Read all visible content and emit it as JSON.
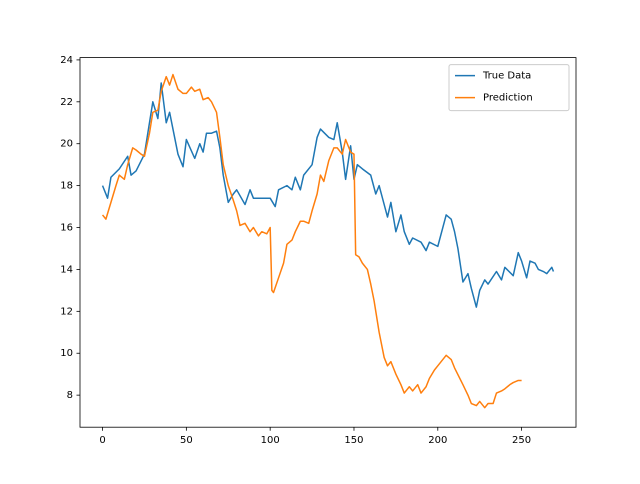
{
  "chart_data": {
    "type": "line",
    "xlim": [
      -13.45,
      282.45
    ],
    "ylim": [
      6.47,
      24.11
    ],
    "xticks": [
      0,
      50,
      100,
      150,
      200,
      250
    ],
    "yticks": [
      8,
      10,
      12,
      14,
      16,
      18,
      20,
      22,
      24
    ],
    "legend": "upper right",
    "series": [
      {
        "name": "True Data",
        "color": "#1f77b4",
        "x": [
          0,
          3,
          5,
          10,
          15,
          17,
          20,
          25,
          30,
          33,
          35,
          38,
          40,
          45,
          48,
          50,
          55,
          58,
          60,
          62,
          65,
          68,
          70,
          72,
          75,
          78,
          80,
          85,
          88,
          90,
          95,
          100,
          103,
          105,
          110,
          113,
          115,
          118,
          120,
          125,
          128,
          130,
          135,
          138,
          140,
          143,
          145,
          148,
          150,
          152,
          155,
          160,
          163,
          165,
          170,
          172,
          175,
          178,
          180,
          183,
          185,
          190,
          193,
          195,
          200,
          203,
          205,
          208,
          210,
          212,
          215,
          218,
          220,
          223,
          225,
          228,
          230,
          235,
          238,
          240,
          245,
          248,
          250,
          253,
          255,
          258,
          260,
          263,
          265,
          268,
          269
        ],
        "values": [
          18.0,
          17.4,
          18.4,
          18.8,
          19.4,
          18.5,
          18.7,
          19.5,
          22.0,
          21.2,
          22.9,
          21.0,
          21.5,
          19.5,
          18.9,
          20.2,
          19.3,
          20.0,
          19.6,
          20.5,
          20.5,
          20.6,
          19.8,
          18.5,
          17.2,
          17.6,
          17.8,
          17.1,
          17.8,
          17.4,
          17.4,
          17.4,
          17.0,
          17.8,
          18.0,
          17.8,
          18.4,
          17.8,
          18.5,
          19.0,
          20.3,
          20.7,
          20.3,
          20.2,
          21.0,
          19.6,
          18.3,
          19.9,
          18.3,
          19.0,
          18.8,
          18.5,
          17.6,
          18.0,
          16.5,
          17.2,
          15.8,
          16.6,
          15.8,
          15.2,
          15.5,
          15.3,
          14.9,
          15.3,
          15.1,
          16.0,
          16.6,
          16.4,
          15.8,
          15.0,
          13.4,
          13.8,
          13.1,
          12.2,
          13.0,
          13.5,
          13.3,
          13.9,
          13.5,
          14.1,
          13.7,
          14.8,
          14.4,
          13.6,
          14.4,
          14.3,
          14.0,
          13.9,
          13.8,
          14.1,
          13.9
        ]
      },
      {
        "name": "Prediction",
        "color": "#ff7f0e",
        "x": [
          0,
          2,
          5,
          8,
          10,
          13,
          15,
          18,
          20,
          23,
          25,
          28,
          30,
          33,
          35,
          38,
          40,
          42,
          45,
          48,
          50,
          53,
          55,
          58,
          60,
          63,
          65,
          68,
          70,
          72,
          75,
          78,
          80,
          82,
          85,
          88,
          90,
          93,
          95,
          98,
          100,
          101,
          102,
          105,
          108,
          110,
          113,
          115,
          118,
          120,
          123,
          125,
          128,
          130,
          132,
          135,
          138,
          140,
          143,
          145,
          148,
          150,
          151,
          153,
          155,
          158,
          160,
          162,
          165,
          168,
          170,
          172,
          175,
          178,
          180,
          183,
          185,
          188,
          190,
          193,
          195,
          198,
          200,
          205,
          208,
          210,
          215,
          218,
          220,
          223,
          225,
          228,
          230,
          233,
          235,
          238,
          240,
          243,
          245,
          248,
          250
        ],
        "values": [
          16.6,
          16.4,
          17.2,
          18.0,
          18.5,
          18.3,
          19.0,
          19.8,
          19.7,
          19.5,
          19.4,
          20.5,
          21.5,
          21.6,
          22.5,
          23.2,
          22.8,
          23.3,
          22.6,
          22.4,
          22.4,
          22.7,
          22.5,
          22.6,
          22.1,
          22.2,
          22.0,
          21.5,
          20.3,
          19.0,
          18.0,
          17.3,
          16.8,
          16.1,
          16.2,
          15.8,
          16.0,
          15.6,
          15.8,
          15.7,
          16.0,
          13.0,
          12.9,
          13.6,
          14.3,
          15.2,
          15.4,
          15.8,
          16.3,
          16.3,
          16.2,
          16.8,
          17.6,
          18.5,
          18.2,
          19.2,
          19.8,
          19.8,
          19.5,
          20.2,
          19.6,
          19.5,
          14.7,
          14.6,
          14.3,
          14.0,
          13.3,
          12.5,
          11.0,
          9.8,
          9.4,
          9.6,
          9.0,
          8.5,
          8.1,
          8.4,
          8.2,
          8.5,
          8.1,
          8.4,
          8.8,
          9.2,
          9.4,
          9.9,
          9.7,
          9.3,
          8.5,
          8.0,
          7.6,
          7.5,
          7.7,
          7.4,
          7.6,
          7.6,
          8.1,
          8.2,
          8.3,
          8.5,
          8.6,
          8.7,
          8.7
        ]
      }
    ]
  }
}
